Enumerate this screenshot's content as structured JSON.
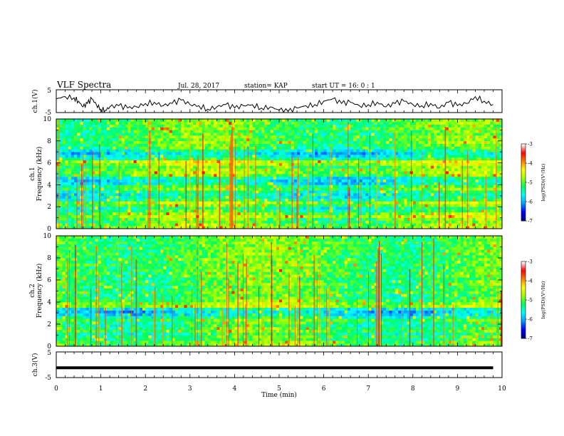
{
  "header": {
    "title": "VLF Spectra",
    "date": "Jul. 28, 2017",
    "station": "station= KAP",
    "start": "start  UT =  16: 0  : 1"
  },
  "colors": {
    "colormap": [
      "#000080",
      "#0000ff",
      "#00a0ff",
      "#00ffff",
      "#00ff60",
      "#a0ff00",
      "#ffff00",
      "#ff8000",
      "#ff0000",
      "#ffffff"
    ],
    "trace": "#000000"
  },
  "chart_data": [
    {
      "type": "line",
      "name": "ch1-waveform",
      "ylabel": "ch.1(V)",
      "ylim": [
        -5,
        5
      ],
      "yticks": [
        "5",
        "-5"
      ],
      "xlim": [
        0,
        10
      ],
      "x": [
        0.0,
        0.2,
        0.4,
        0.5,
        0.6,
        0.7,
        0.8,
        0.9,
        1.0,
        1.1,
        1.2,
        1.4,
        1.6,
        1.8,
        2.0,
        2.2,
        2.4,
        2.6,
        2.8,
        3.0,
        3.2,
        3.4,
        3.6,
        3.8,
        4.0,
        4.2,
        4.4,
        4.6,
        4.8,
        5.0,
        5.2,
        5.4,
        5.6,
        5.8,
        6.0,
        6.2,
        6.4,
        6.6,
        6.8,
        7.0,
        7.2,
        7.4,
        7.6,
        7.8,
        8.0,
        8.2,
        8.4,
        8.6,
        8.8,
        9.0,
        9.2,
        9.4,
        9.6,
        9.8
      ],
      "y": [
        1,
        2,
        1.5,
        0,
        -2.5,
        -1,
        1,
        -1.5,
        -3.5,
        -4,
        -2.5,
        -2,
        -3,
        -2.5,
        -1,
        -0.5,
        -2,
        -1,
        0.5,
        -1.5,
        -2,
        -3.5,
        -2.5,
        -1.5,
        -3,
        -2,
        -1.5,
        -3,
        -2.5,
        -4,
        -4.5,
        -3,
        -2,
        -1.5,
        0,
        1,
        -1,
        -0.5,
        -2,
        -1.5,
        -0.5,
        -2.5,
        -1,
        0,
        -1.5,
        -2,
        -1,
        -3,
        -0.5,
        -2,
        -1,
        2,
        0,
        -1.5
      ]
    },
    {
      "type": "heatmap",
      "name": "ch1-spectrogram",
      "ylabel": "ch.1\nFrequency (kHz)",
      "ylim": [
        0,
        10
      ],
      "yticks": [
        "10",
        "8",
        "6",
        "4",
        "2",
        "0"
      ],
      "xlim": [
        0,
        10
      ],
      "colorbar": {
        "label": "log(PSD)(V²/Hz)",
        "range": [
          -7,
          -3
        ],
        "ticks": [
          "-3",
          "-4",
          "-5",
          "-6",
          "-7"
        ]
      },
      "rows_low_to_high_kHz": [
        -4.8,
        -4.9,
        -5.1,
        -5.0,
        -4.7,
        -4.9,
        -5.2,
        -5.4,
        -5.0,
        -4.8,
        -5.3,
        -5.5,
        -5.6,
        -5.4,
        -5.0,
        -5.2,
        -5.6,
        -5.7,
        -5.5,
        -5.0,
        -4.8,
        -4.9,
        -5.0,
        -4.7,
        -4.6,
        -5.3,
        -5.6,
        -5.8,
        -5.5,
        -5.2,
        -5.1,
        -5.0,
        -5.1,
        -5.0,
        -5.2,
        -5.1,
        -5.0,
        -5.1,
        -5.0,
        -5.1
      ]
    },
    {
      "type": "heatmap",
      "name": "ch2-spectrogram",
      "ylabel": "ch.2\nFrequency (kHz)",
      "ylim": [
        0,
        10
      ],
      "yticks": [
        "10",
        "8",
        "6",
        "4",
        "2",
        "0"
      ],
      "xlim": [
        0,
        10
      ],
      "colorbar": {
        "label": "log(PSD)(V²/Hz)",
        "range": [
          -7,
          -3
        ],
        "ticks": [
          "-3",
          "-4",
          "-5",
          "-6",
          "-7"
        ]
      },
      "rows_low_to_high_kHz": [
        -5.0,
        -4.9,
        -5.2,
        -5.1,
        -5.3,
        -5.0,
        -5.1,
        -5.3,
        -5.2,
        -5.0,
        -5.4,
        -5.7,
        -5.8,
        -5.6,
        -4.7,
        -4.8,
        -5.0,
        -5.1,
        -5.2,
        -5.0,
        -5.1,
        -5.2,
        -5.0,
        -5.1,
        -5.2,
        -5.0,
        -5.1,
        -5.0,
        -5.1,
        -5.0,
        -5.1,
        -5.0,
        -5.1,
        -5.0,
        -5.1,
        -5.0,
        -5.1,
        -5.0,
        -5.1,
        -5.0
      ]
    },
    {
      "type": "line",
      "name": "ch3-waveform",
      "ylabel": "ch.3(V)",
      "ylim": [
        -5,
        5
      ],
      "yticks": [
        "5",
        "-5"
      ],
      "xlim": [
        0,
        10
      ],
      "x": [
        0,
        9.8
      ],
      "y": [
        -1.2,
        -1.2
      ]
    }
  ],
  "xaxis": {
    "label": "Time (min)",
    "ticks": [
      "0",
      "1",
      "2",
      "3",
      "4",
      "5",
      "6",
      "7",
      "8",
      "9",
      "10"
    ]
  }
}
